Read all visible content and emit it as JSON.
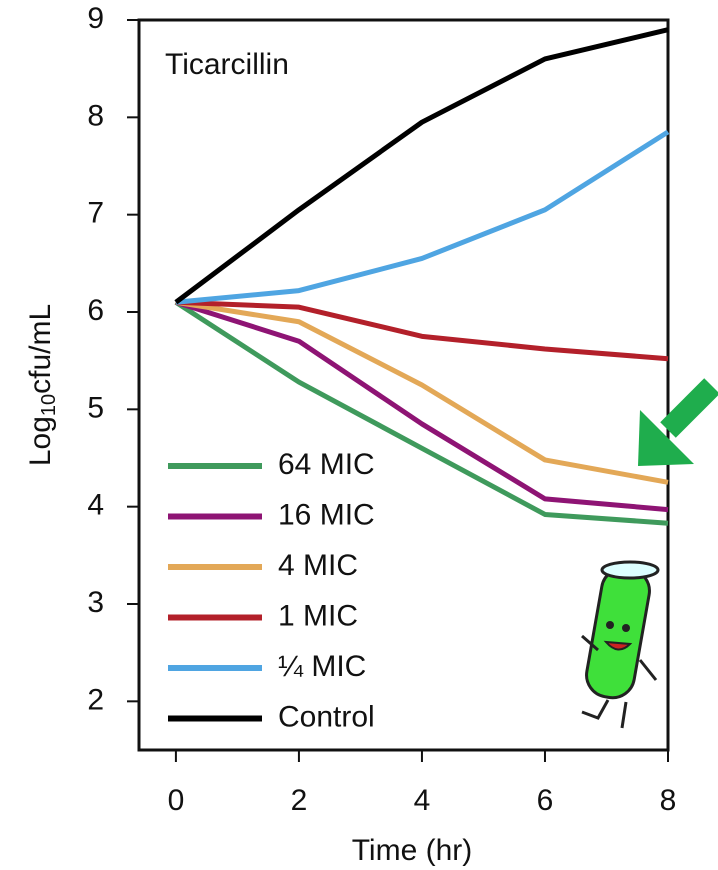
{
  "chart_data": {
    "type": "line",
    "title": "Ticarcillin",
    "xlabel": "Time (hr)",
    "ylabel": {
      "base": "Log",
      "sub": "10",
      "rest": "cfu/mL"
    },
    "x": [
      0,
      2,
      4,
      6,
      8
    ],
    "xlim": [
      -0.6,
      8
    ],
    "xticks": [
      0,
      2,
      4,
      6,
      8
    ],
    "ylim": [
      1.5,
      9
    ],
    "yticks": [
      2,
      3,
      4,
      5,
      6,
      7,
      8,
      9
    ],
    "legend": "lower-left",
    "series": [
      {
        "name": "64 MIC",
        "color": "#3f9a5c",
        "values": [
          6.1,
          5.28,
          4.6,
          3.92,
          3.83
        ]
      },
      {
        "name": "16 MIC",
        "color": "#8e1474",
        "values": [
          6.1,
          5.7,
          4.85,
          4.08,
          3.97
        ]
      },
      {
        "name": "4 MIC",
        "color": "#e3a857",
        "values": [
          6.1,
          5.9,
          5.25,
          4.48,
          4.25
        ]
      },
      {
        "name": "1 MIC",
        "color": "#b3202a",
        "values": [
          6.1,
          6.05,
          5.75,
          5.62,
          5.52
        ]
      },
      {
        "name": "¼ MIC",
        "color": "#4fa5e2",
        "values": [
          6.1,
          6.22,
          6.55,
          7.05,
          7.85
        ]
      },
      {
        "name": "Control",
        "color": "#000000",
        "values": [
          6.1,
          7.05,
          7.95,
          8.6,
          8.9
        ]
      }
    ]
  }
}
